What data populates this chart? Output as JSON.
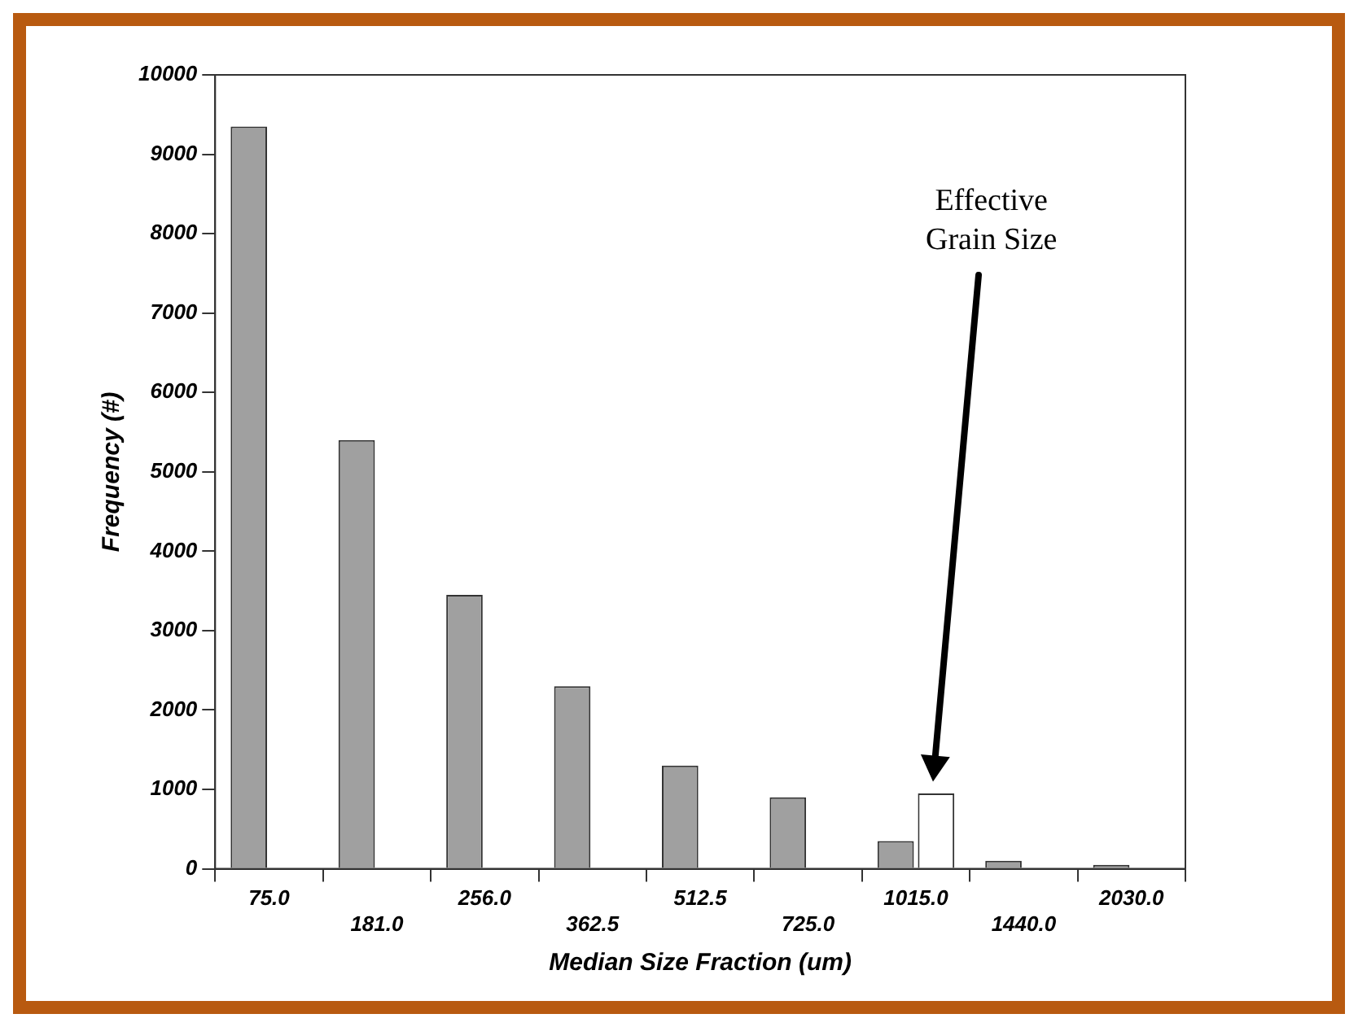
{
  "chart_data": {
    "type": "bar",
    "xlabel": "Median Size Fraction (um)",
    "ylabel": "Frequency (#)",
    "categories": [
      "75.0",
      "181.0",
      "256.0",
      "362.5",
      "512.5",
      "725.0",
      "1015.0",
      "1440.0",
      "2030.0"
    ],
    "series": [
      {
        "color": "#a0a0a0",
        "values": [
          9350,
          5400,
          3450,
          2300,
          1300,
          900,
          350,
          100,
          50
        ]
      },
      {
        "color": "#ffffff",
        "values": [
          null,
          null,
          null,
          null,
          null,
          null,
          950,
          null,
          null
        ]
      }
    ],
    "ylim": [
      0,
      10000
    ],
    "yticks": [
      0,
      1000,
      2000,
      3000,
      4000,
      5000,
      6000,
      7000,
      8000,
      9000,
      10000
    ],
    "annotations": [
      "Effective Grain Size"
    ],
    "legend": false
  }
}
